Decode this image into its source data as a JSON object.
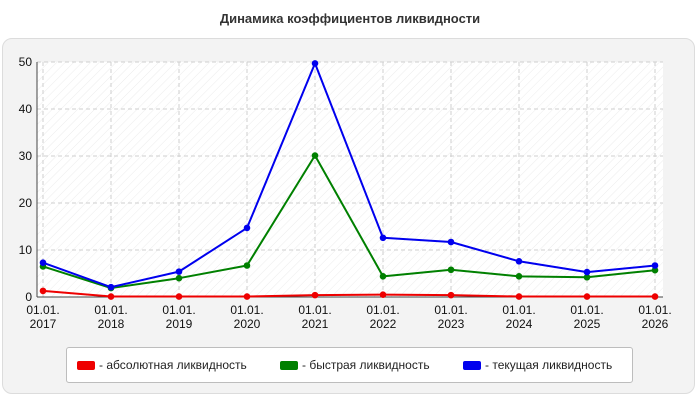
{
  "chart_data": {
    "type": "line",
    "title": "Динамика коэффициентов ликвидности",
    "xlabel": "",
    "ylabel": "",
    "categories": [
      [
        "01.01.",
        "2017"
      ],
      [
        "01.01.",
        "2018"
      ],
      [
        "01.01.",
        "2019"
      ],
      [
        "01.01.",
        "2020"
      ],
      [
        "01.01.",
        "2021"
      ],
      [
        "01.01.",
        "2022"
      ],
      [
        "01.01.",
        "2023"
      ],
      [
        "01.01.",
        "2024"
      ],
      [
        "01.01.",
        "2025"
      ],
      [
        "01.01.",
        "2026"
      ]
    ],
    "ylim": [
      0,
      50
    ],
    "yticks": [
      "0",
      "10",
      "20",
      "30",
      "40",
      "50"
    ],
    "grid": true,
    "legend_position": "bottom",
    "series": [
      {
        "name": "- абсолютная ликвидность",
        "color": "#ee0000",
        "values": [
          1.3,
          0.1,
          0.1,
          0.1,
          0.4,
          0.5,
          0.4,
          0.1,
          0.1,
          0.1
        ]
      },
      {
        "name": "- быстрая ликвидность",
        "color": "#008000",
        "values": [
          6.5,
          1.9,
          4.0,
          6.7,
          30.1,
          4.4,
          5.8,
          4.4,
          4.2,
          5.7
        ]
      },
      {
        "name": "- текущая ликвидность",
        "color": "#0000ee",
        "values": [
          7.3,
          2.1,
          5.4,
          14.7,
          49.7,
          12.6,
          11.7,
          7.6,
          5.3,
          6.7
        ]
      }
    ]
  }
}
